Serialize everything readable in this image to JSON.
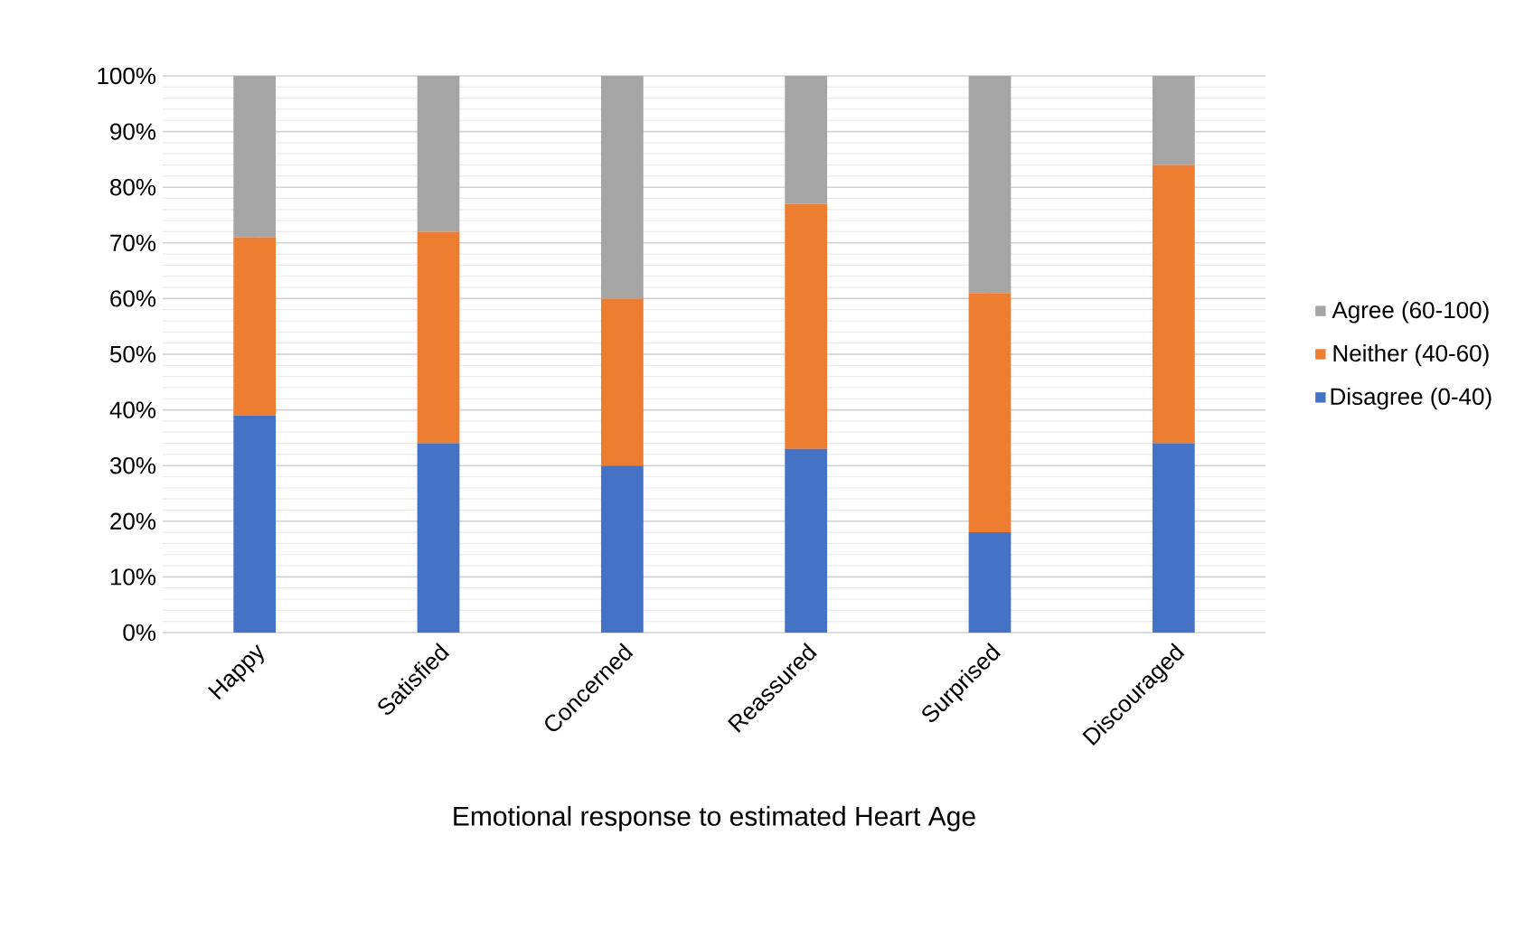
{
  "chart_data": {
    "type": "bar",
    "stacked": true,
    "xlabel": "Emotional response to estimated Heart Age",
    "categories": [
      "Happy",
      "Satisfied",
      "Concerned",
      "Reassured",
      "Surprised",
      "Discouraged"
    ],
    "series": [
      {
        "name": "Disagree (0-40)",
        "color": "#4472c4",
        "values": [
          39,
          34,
          30,
          33,
          18,
          34
        ]
      },
      {
        "name": "Neither (40-60)",
        "color": "#ed7d31",
        "values": [
          32,
          38,
          30,
          44,
          43,
          50
        ]
      },
      {
        "name": "Agree (60-100)",
        "color": "#a5a5a5",
        "values": [
          29,
          28,
          40,
          23,
          39,
          16
        ]
      }
    ],
    "ylim": [
      0,
      100
    ],
    "yticks": [
      {
        "value": 0,
        "label": "0%"
      },
      {
        "value": 10,
        "label": "10%"
      },
      {
        "value": 20,
        "label": "20%"
      },
      {
        "value": 30,
        "label": "30%"
      },
      {
        "value": 40,
        "label": "40%"
      },
      {
        "value": 50,
        "label": "50%"
      },
      {
        "value": 60,
        "label": "60%"
      },
      {
        "value": 70,
        "label": "70%"
      },
      {
        "value": 80,
        "label": "80%"
      },
      {
        "value": 90,
        "label": "90%"
      },
      {
        "value": 100,
        "label": "100%"
      }
    ],
    "grid": true,
    "legend": "right"
  }
}
